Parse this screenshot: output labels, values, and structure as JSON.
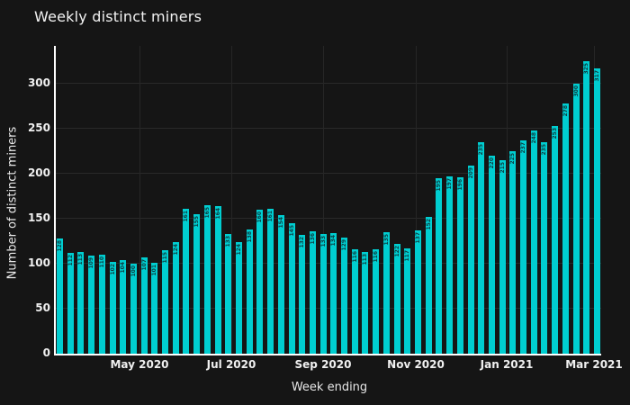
{
  "title": "Weekly distinct miners",
  "colors": {
    "background": "#151515",
    "bar": "#00ced1",
    "bar_label_text": "#0b3e42",
    "gridline": "#2a2a2a",
    "axis_spine": "#ffffff",
    "text": "#f0f0f0"
  },
  "chart_data": {
    "type": "bar",
    "title": "Weekly distinct miners",
    "xlabel": "Week ending",
    "ylabel": "Number of distinct miners",
    "x_tick_labels": [
      "May 2020",
      "Jul 2020",
      "Sep 2020",
      "Nov 2020",
      "Jan 2021",
      "Mar 2021"
    ],
    "y_ticks": [
      0,
      50,
      100,
      150,
      200,
      250,
      300
    ],
    "ylim": [
      0,
      342
    ],
    "grid": true,
    "legend": "none",
    "series_name": "Weekly distinct miners",
    "values": [
      128,
      112,
      113,
      109,
      110,
      102,
      104,
      100,
      107,
      101,
      115,
      124,
      161,
      155,
      165,
      164,
      133,
      124,
      138,
      160,
      161,
      154,
      145,
      132,
      136,
      133,
      134,
      129,
      116,
      113,
      116,
      135,
      122,
      117,
      137,
      152,
      195,
      197,
      196,
      209,
      235,
      220,
      215,
      225,
      237,
      248,
      235,
      253,
      278,
      300,
      325,
      317
    ],
    "value_labels_inside_bars": true
  }
}
